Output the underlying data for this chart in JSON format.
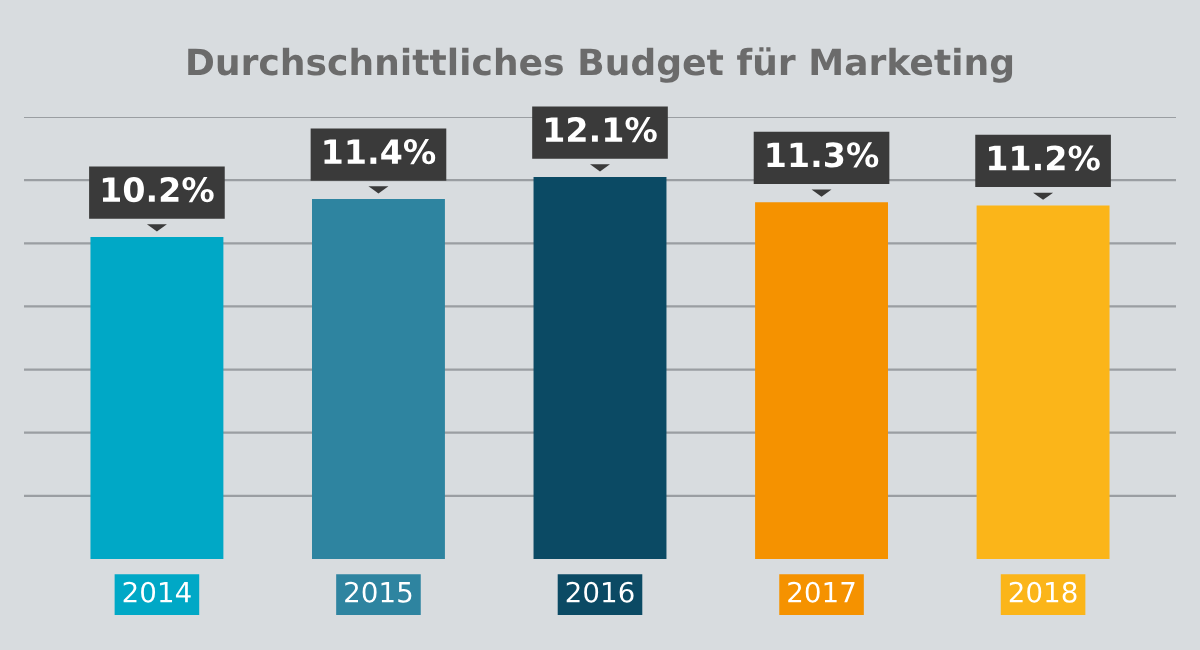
{
  "chart_data": {
    "type": "bar",
    "title": "Durchschnittliches Budget für Marketing",
    "categories": [
      "2014",
      "2015",
      "2016",
      "2017",
      "2018"
    ],
    "values": [
      10.2,
      11.4,
      12.1,
      11.3,
      11.2
    ],
    "value_labels": [
      "10.2%",
      "11.4%",
      "12.1%",
      "11.3%",
      "11.2%"
    ],
    "colors": [
      "#00a8c6",
      "#2e84a0",
      "#0b4a64",
      "#f59200",
      "#fbb519"
    ],
    "ylim": [
      0,
      14
    ],
    "yticks": [
      {
        "value": 2,
        "label": null
      },
      {
        "value": 4,
        "label": null
      },
      {
        "value": 6,
        "label": null
      },
      {
        "value": 8,
        "label": null
      },
      {
        "value": 10,
        "label": null
      },
      {
        "value": 12,
        "label": null
      },
      {
        "value": 14,
        "label": null
      }
    ],
    "grid": "y",
    "tick_labels": "x"
  }
}
